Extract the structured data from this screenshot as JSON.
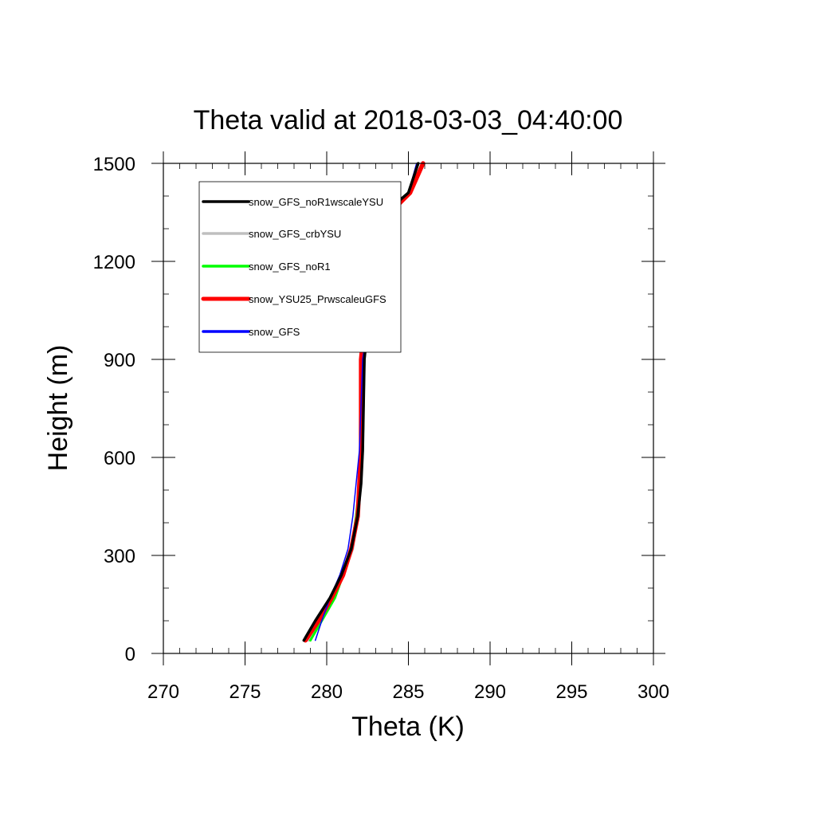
{
  "chart_data": {
    "type": "line",
    "title": "Theta valid at 2018-03-03_04:40:00",
    "xlabel": "Theta (K)",
    "ylabel": "Height (m)",
    "xlim": [
      270,
      300
    ],
    "ylim": [
      0,
      1500
    ],
    "xticks": [
      270,
      275,
      280,
      285,
      290,
      295,
      300
    ],
    "yticks": [
      0,
      300,
      600,
      900,
      1200,
      1500
    ],
    "xtick_labels": [
      "270",
      "275",
      "280",
      "285",
      "290",
      "295",
      "300"
    ],
    "ytick_labels": [
      "0",
      "300",
      "600",
      "900",
      "1200",
      "1500"
    ],
    "grid": false,
    "legend_position": "top-left, inside plot",
    "series": [
      {
        "name": "snow_GFS_noR1wscaleYSU",
        "color": "#000000",
        "x": [
          278.6,
          279.3,
          280.2,
          280.9,
          281.5,
          281.9,
          282.1,
          282.2,
          282.3,
          282.5,
          282.8,
          283.4,
          284.3,
          285.0,
          285.6
        ],
        "y": [
          40,
          100,
          170,
          240,
          320,
          420,
          520,
          620,
          900,
          1000,
          1130,
          1300,
          1380,
          1410,
          1500
        ]
      },
      {
        "name": "snow_GFS_crbYSU",
        "color": "#bfbfbf",
        "x": [
          278.9,
          279.6,
          280.5,
          281.0,
          281.6,
          281.9,
          282.1,
          282.2,
          282.3,
          282.5,
          282.8,
          283.4,
          284.3,
          285.0,
          285.6
        ],
        "y": [
          40,
          100,
          170,
          240,
          320,
          420,
          520,
          620,
          900,
          1000,
          1130,
          1300,
          1380,
          1410,
          1500
        ]
      },
      {
        "name": "snow_GFS_noR1",
        "color": "#00ff00",
        "x": [
          279.0,
          279.7,
          280.5,
          281.0,
          281.5,
          281.8,
          282.0,
          282.2,
          282.3,
          282.5,
          282.8,
          283.4,
          284.3,
          285.0,
          285.6
        ],
        "y": [
          40,
          100,
          170,
          240,
          320,
          420,
          520,
          620,
          900,
          1000,
          1130,
          1300,
          1380,
          1410,
          1500
        ]
      },
      {
        "name": "snow_YSU25_PrwscaleuGFS",
        "color": "#ff0000",
        "x": [
          278.7,
          279.5,
          280.3,
          281.0,
          281.5,
          281.9,
          282.0,
          282.1,
          282.1,
          282.3,
          282.6,
          283.3,
          284.3,
          285.1,
          285.9
        ],
        "y": [
          40,
          100,
          170,
          240,
          320,
          420,
          520,
          620,
          900,
          1000,
          1190,
          1290,
          1370,
          1410,
          1500
        ]
      },
      {
        "name": "snow_GFS",
        "color": "#0000ff",
        "x": [
          279.3,
          279.7,
          280.2,
          280.8,
          281.3,
          281.6,
          281.8,
          282.0,
          282.2,
          282.5,
          282.8,
          283.3,
          284.3,
          285.0,
          285.5
        ],
        "y": [
          40,
          100,
          170,
          240,
          320,
          420,
          520,
          620,
          900,
          1000,
          1130,
          1300,
          1380,
          1410,
          1500
        ]
      }
    ]
  }
}
